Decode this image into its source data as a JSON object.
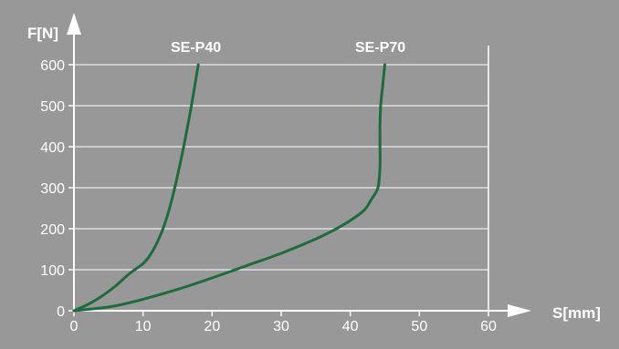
{
  "chart_data": {
    "type": "line",
    "xlabel": "S[mm]",
    "ylabel": "F[N]",
    "xlim": [
      0,
      60
    ],
    "ylim": [
      0,
      600
    ],
    "x_ticks": [
      "0",
      "10",
      "20",
      "30",
      "40",
      "50",
      "60"
    ],
    "y_ticks": [
      "0",
      "100",
      "200",
      "300",
      "400",
      "500",
      "600"
    ],
    "grid": "horizontal",
    "colors": {
      "background": "#989898",
      "grid": "#ffffff",
      "axis": "#ffffff",
      "text": "#ffffff",
      "series": "#1e6b3e"
    },
    "series": [
      {
        "name": "SE-P40",
        "points": [
          [
            0,
            0
          ],
          [
            2,
            15
          ],
          [
            4,
            35
          ],
          [
            6,
            60
          ],
          [
            8,
            90
          ],
          [
            10,
            115
          ],
          [
            11,
            135
          ],
          [
            12,
            165
          ],
          [
            13,
            205
          ],
          [
            14,
            260
          ],
          [
            15,
            330
          ],
          [
            16,
            410
          ],
          [
            17,
            500
          ],
          [
            18,
            600
          ]
        ]
      },
      {
        "name": "SE-P70",
        "points": [
          [
            0,
            0
          ],
          [
            3,
            5
          ],
          [
            6,
            12
          ],
          [
            10,
            28
          ],
          [
            15,
            52
          ],
          [
            20,
            80
          ],
          [
            25,
            110
          ],
          [
            30,
            140
          ],
          [
            35,
            175
          ],
          [
            38,
            200
          ],
          [
            40,
            220
          ],
          [
            42,
            245
          ],
          [
            43,
            270
          ],
          [
            44,
            300
          ],
          [
            44.3,
            350
          ],
          [
            44.3,
            400
          ],
          [
            44.3,
            450
          ],
          [
            44.4,
            500
          ],
          [
            44.7,
            550
          ],
          [
            45,
            600
          ]
        ]
      }
    ]
  }
}
